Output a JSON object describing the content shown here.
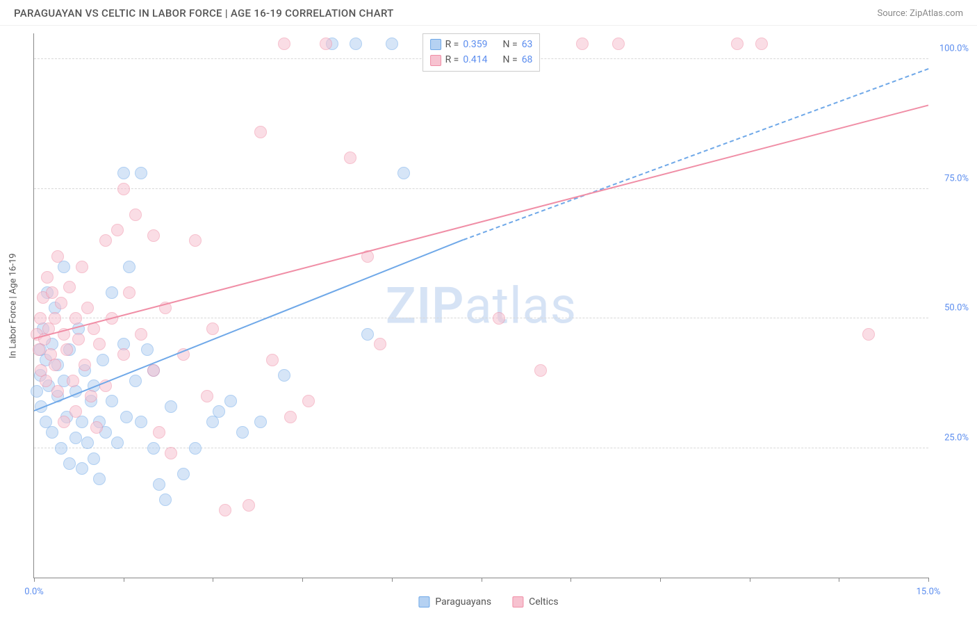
{
  "header": {
    "title": "PARAGUAYAN VS CELTIC IN LABOR FORCE | AGE 16-19 CORRELATION CHART",
    "source": "Source: ZipAtlas.com"
  },
  "chart": {
    "type": "scatter",
    "background_color": "#ffffff",
    "grid_color": "#d8d8d8",
    "axis_color": "#888888",
    "label_color": "#555555",
    "tick_label_color": "#5b8def",
    "tick_fontsize": 13,
    "axis_title_fontsize": 13,
    "y_axis_title": "In Labor Force | Age 16-19",
    "xlim": [
      0,
      15
    ],
    "ylim": [
      0,
      105
    ],
    "xticks": [
      0,
      1.5,
      3,
      4.5,
      6,
      7.5,
      9,
      10.5,
      12,
      13.5,
      15
    ],
    "xtick_labels": {
      "0": "0.0%",
      "15": "15.0%"
    },
    "yticks": [
      25,
      50,
      75,
      100
    ],
    "ytick_labels": {
      "25": "25.0%",
      "50": "50.0%",
      "75": "75.0%",
      "100": "100.0%"
    },
    "watermark": "ZIPatlas",
    "point_radius": 9,
    "point_opacity": 0.55,
    "series": [
      {
        "name": "Paraguayans",
        "color": "#6fa8e8",
        "fill": "#b5d1f2",
        "stroke": "#6fa8e8",
        "R": "0.359",
        "N": "63",
        "trend": {
          "x1": 0,
          "y1": 32,
          "x2": 7.2,
          "y2": 65,
          "dashed_to_x": 15,
          "dashed_to_y": 98
        },
        "points": [
          [
            0.05,
            36
          ],
          [
            0.1,
            44
          ],
          [
            0.1,
            39
          ],
          [
            0.12,
            33
          ],
          [
            0.15,
            48
          ],
          [
            0.2,
            42
          ],
          [
            0.2,
            30
          ],
          [
            0.22,
            55
          ],
          [
            0.25,
            37
          ],
          [
            0.3,
            45
          ],
          [
            0.3,
            28
          ],
          [
            0.35,
            52
          ],
          [
            0.4,
            35
          ],
          [
            0.4,
            41
          ],
          [
            0.45,
            25
          ],
          [
            0.5,
            38
          ],
          [
            0.5,
            60
          ],
          [
            0.55,
            31
          ],
          [
            0.6,
            44
          ],
          [
            0.6,
            22
          ],
          [
            0.7,
            36
          ],
          [
            0.7,
            27
          ],
          [
            0.75,
            48
          ],
          [
            0.8,
            30
          ],
          [
            0.8,
            21
          ],
          [
            0.85,
            40
          ],
          [
            0.9,
            26
          ],
          [
            0.95,
            34
          ],
          [
            1.0,
            23
          ],
          [
            1.0,
            37
          ],
          [
            1.1,
            30
          ],
          [
            1.1,
            19
          ],
          [
            1.15,
            42
          ],
          [
            1.2,
            28
          ],
          [
            1.3,
            55
          ],
          [
            1.3,
            34
          ],
          [
            1.4,
            26
          ],
          [
            1.5,
            78
          ],
          [
            1.5,
            45
          ],
          [
            1.55,
            31
          ],
          [
            1.6,
            60
          ],
          [
            1.7,
            38
          ],
          [
            1.8,
            78
          ],
          [
            1.8,
            30
          ],
          [
            1.9,
            44
          ],
          [
            2.0,
            25
          ],
          [
            2.0,
            40
          ],
          [
            2.1,
            18
          ],
          [
            2.2,
            15
          ],
          [
            2.3,
            33
          ],
          [
            2.5,
            20
          ],
          [
            2.7,
            25
          ],
          [
            3.0,
            30
          ],
          [
            3.1,
            32
          ],
          [
            3.3,
            34
          ],
          [
            3.5,
            28
          ],
          [
            3.8,
            30
          ],
          [
            4.2,
            39
          ],
          [
            5.0,
            103
          ],
          [
            5.4,
            103
          ],
          [
            5.6,
            47
          ],
          [
            6.0,
            103
          ],
          [
            6.2,
            78
          ]
        ]
      },
      {
        "name": "Celtics",
        "color": "#f08ea6",
        "fill": "#f7c2d0",
        "stroke": "#f08ea6",
        "R": "0.414",
        "N": "68",
        "trend": {
          "x1": 0,
          "y1": 46,
          "x2": 15,
          "y2": 91
        },
        "points": [
          [
            0.05,
            47
          ],
          [
            0.08,
            44
          ],
          [
            0.1,
            50
          ],
          [
            0.12,
            40
          ],
          [
            0.15,
            54
          ],
          [
            0.18,
            46
          ],
          [
            0.2,
            38
          ],
          [
            0.22,
            58
          ],
          [
            0.25,
            48
          ],
          [
            0.28,
            43
          ],
          [
            0.3,
            55
          ],
          [
            0.35,
            50
          ],
          [
            0.35,
            41
          ],
          [
            0.4,
            62
          ],
          [
            0.4,
            36
          ],
          [
            0.45,
            53
          ],
          [
            0.5,
            47
          ],
          [
            0.5,
            30
          ],
          [
            0.55,
            44
          ],
          [
            0.6,
            56
          ],
          [
            0.65,
            38
          ],
          [
            0.7,
            50
          ],
          [
            0.7,
            32
          ],
          [
            0.75,
            46
          ],
          [
            0.8,
            60
          ],
          [
            0.85,
            41
          ],
          [
            0.9,
            52
          ],
          [
            0.95,
            35
          ],
          [
            1.0,
            48
          ],
          [
            1.05,
            29
          ],
          [
            1.1,
            45
          ],
          [
            1.2,
            65
          ],
          [
            1.2,
            37
          ],
          [
            1.3,
            50
          ],
          [
            1.4,
            67
          ],
          [
            1.5,
            43
          ],
          [
            1.5,
            75
          ],
          [
            1.6,
            55
          ],
          [
            1.7,
            70
          ],
          [
            1.8,
            47
          ],
          [
            2.0,
            66
          ],
          [
            2.0,
            40
          ],
          [
            2.1,
            28
          ],
          [
            2.2,
            52
          ],
          [
            2.3,
            24
          ],
          [
            2.5,
            43
          ],
          [
            2.7,
            65
          ],
          [
            2.9,
            35
          ],
          [
            3.0,
            48
          ],
          [
            3.2,
            13
          ],
          [
            3.6,
            14
          ],
          [
            3.8,
            86
          ],
          [
            4.0,
            42
          ],
          [
            4.2,
            103
          ],
          [
            4.3,
            31
          ],
          [
            4.6,
            34
          ],
          [
            4.9,
            103
          ],
          [
            5.3,
            81
          ],
          [
            5.6,
            62
          ],
          [
            5.8,
            45
          ],
          [
            7.8,
            50
          ],
          [
            8.2,
            103
          ],
          [
            8.5,
            40
          ],
          [
            9.2,
            103
          ],
          [
            9.8,
            103
          ],
          [
            11.8,
            103
          ],
          [
            12.2,
            103
          ],
          [
            14.0,
            47
          ]
        ]
      }
    ],
    "stats_legend": {
      "R_label": "R =",
      "N_label": "N ="
    },
    "bottom_legend": [
      "Paraguayans",
      "Celtics"
    ]
  }
}
